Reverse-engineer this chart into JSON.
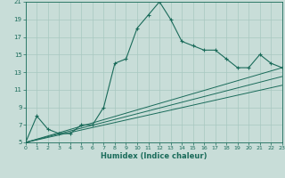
{
  "xlabel": "Humidex (Indice chaleur)",
  "bg_color": "#c8ddd8",
  "grid_color": "#a8c8c0",
  "line_color": "#1a6b5a",
  "xlim": [
    0,
    23
  ],
  "ylim": [
    5,
    21
  ],
  "xticks": [
    0,
    1,
    2,
    3,
    4,
    5,
    6,
    7,
    8,
    9,
    10,
    11,
    12,
    13,
    14,
    15,
    16,
    17,
    18,
    19,
    20,
    21,
    22,
    23
  ],
  "yticks": [
    5,
    7,
    9,
    11,
    13,
    15,
    17,
    19,
    21
  ],
  "main_line": [
    [
      0,
      5
    ],
    [
      1,
      8
    ],
    [
      2,
      6.5
    ],
    [
      3,
      6
    ],
    [
      4,
      6
    ],
    [
      5,
      7
    ],
    [
      6,
      7
    ],
    [
      7,
      9
    ],
    [
      8,
      14
    ],
    [
      9,
      14.5
    ],
    [
      10,
      18
    ],
    [
      11,
      19.5
    ],
    [
      12,
      21
    ],
    [
      13,
      19
    ],
    [
      14,
      16.5
    ],
    [
      15,
      16
    ],
    [
      16,
      15.5
    ],
    [
      17,
      15.5
    ],
    [
      18,
      14.5
    ],
    [
      19,
      13.5
    ],
    [
      20,
      13.5
    ],
    [
      21,
      15
    ],
    [
      22,
      14
    ],
    [
      23,
      13.5
    ]
  ],
  "line2": [
    [
      0,
      5
    ],
    [
      23,
      13.5
    ]
  ],
  "line3": [
    [
      0,
      5
    ],
    [
      23,
      12.5
    ]
  ],
  "line4": [
    [
      0,
      5
    ],
    [
      23,
      11.5
    ]
  ]
}
